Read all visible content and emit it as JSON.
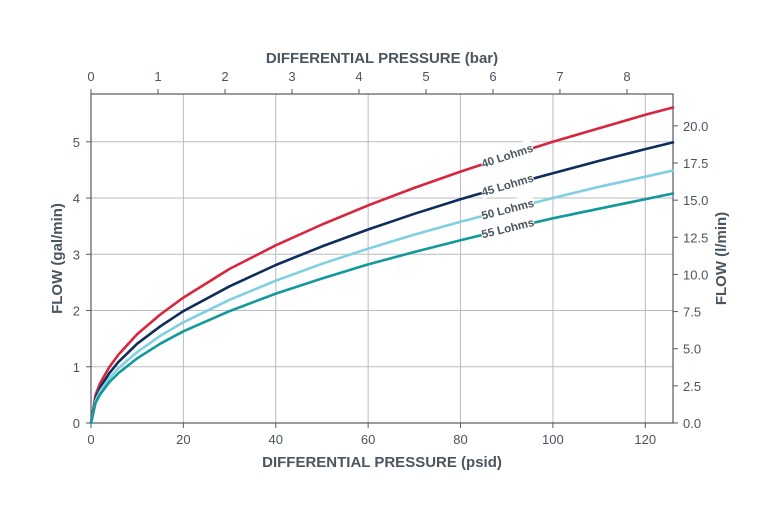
{
  "chart_data": {
    "type": "line",
    "title": "",
    "xlabel": "DIFFERENTIAL PRESSURE (psid)",
    "x2label": "DIFFERENTIAL PRESSURE (bar)",
    "ylabel": "FLOW (gal/min)",
    "y2label": "FLOW (l/min)",
    "xlim": [
      0,
      126
    ],
    "ylim": [
      0,
      5.85
    ],
    "x_ticks": [
      "0",
      "20",
      "40",
      "60",
      "80",
      "100",
      "120"
    ],
    "x2_ticks": [
      "0",
      "1",
      "2",
      "3",
      "4",
      "5",
      "6",
      "7",
      "8"
    ],
    "y_ticks": [
      "0",
      "1",
      "2",
      "3",
      "4",
      "5"
    ],
    "y2_ticks": [
      "0.0",
      "2.5",
      "5.0",
      "7.5",
      "10.0",
      "12.5",
      "15.0",
      "17.5",
      "20.0"
    ],
    "grid": true,
    "x": [
      0,
      0.5,
      1,
      2,
      4,
      6,
      10,
      15,
      20,
      30,
      40,
      50,
      60,
      70,
      80,
      90,
      100,
      110,
      120,
      126
    ],
    "series": [
      {
        "name": "40 Lohms",
        "color": "#d7263d",
        "values": [
          0,
          0.25,
          0.5,
          0.71,
          1.0,
          1.22,
          1.58,
          1.93,
          2.23,
          2.74,
          3.16,
          3.53,
          3.87,
          4.18,
          4.47,
          4.74,
          5.0,
          5.24,
          5.48,
          5.61
        ]
      },
      {
        "name": "45 Lohms",
        "color": "#0f2d5c",
        "values": [
          0,
          0.22,
          0.44,
          0.63,
          0.89,
          1.09,
          1.41,
          1.72,
          1.99,
          2.43,
          2.81,
          3.14,
          3.44,
          3.72,
          3.98,
          4.22,
          4.44,
          4.66,
          4.87,
          4.99
        ]
      },
      {
        "name": "50 Lohms",
        "color": "#7fd0e0",
        "values": [
          0,
          0.2,
          0.4,
          0.57,
          0.8,
          0.98,
          1.26,
          1.55,
          1.79,
          2.19,
          2.53,
          2.83,
          3.1,
          3.35,
          3.58,
          3.79,
          4.0,
          4.2,
          4.38,
          4.49
        ]
      },
      {
        "name": "55 Lohms",
        "color": "#13999b",
        "values": [
          0,
          0.18,
          0.36,
          0.51,
          0.73,
          0.89,
          1.15,
          1.41,
          1.63,
          1.99,
          2.3,
          2.57,
          2.82,
          3.04,
          3.25,
          3.45,
          3.64,
          3.81,
          3.98,
          4.08
        ]
      }
    ]
  }
}
